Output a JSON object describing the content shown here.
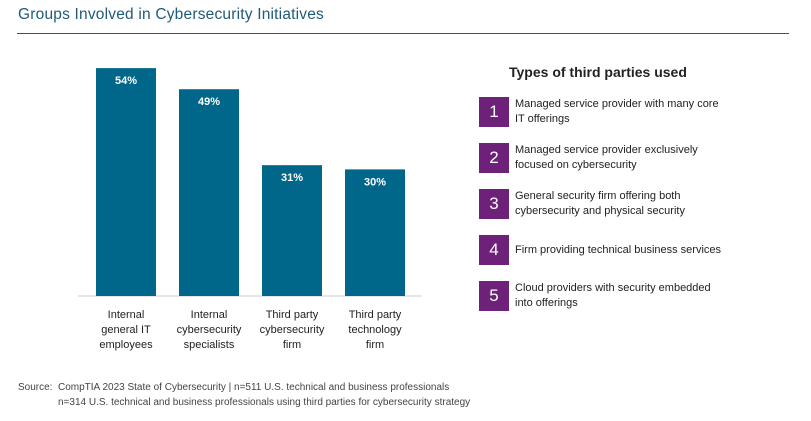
{
  "title": "Groups Involved in Cybersecurity Initiatives",
  "chart_data": {
    "type": "bar",
    "categories": [
      "Internal general IT employees",
      "Internal cybersecurity specialists",
      "Third party cybersecurity firm",
      "Third party technology firm"
    ],
    "category_lines": [
      [
        "Internal",
        "general IT",
        "employees"
      ],
      [
        "Internal",
        "cybersecurity",
        "specialists"
      ],
      [
        "Third party",
        "cybersecurity",
        "firm"
      ],
      [
        "Third party",
        "technology",
        "firm"
      ]
    ],
    "values": [
      54,
      49,
      31,
      30
    ],
    "labels": [
      "54%",
      "49%",
      "31%",
      "30%"
    ],
    "unit": "%",
    "color": "#00668a",
    "grid": false
  },
  "legend": {
    "title": "Types of third parties used",
    "color": "#6e2178",
    "items": [
      {
        "n": "1",
        "text": "Managed service provider with many core IT offerings"
      },
      {
        "n": "2",
        "text": "Managed service provider exclusively focused on cybersecurity"
      },
      {
        "n": "3",
        "text": "General security firm offering both cybersecurity and physical security"
      },
      {
        "n": "4",
        "text": "Firm providing technical business services"
      },
      {
        "n": "5",
        "text": "Cloud providers with security embedded into offerings"
      }
    ]
  },
  "source": {
    "label": "Source:",
    "line1": "CompTIA 2023 State of Cybersecurity | n=511 U.S. technical and business professionals",
    "line2": "n=314 U.S. technical and business professionals using third parties for cybersecurity strategy"
  }
}
